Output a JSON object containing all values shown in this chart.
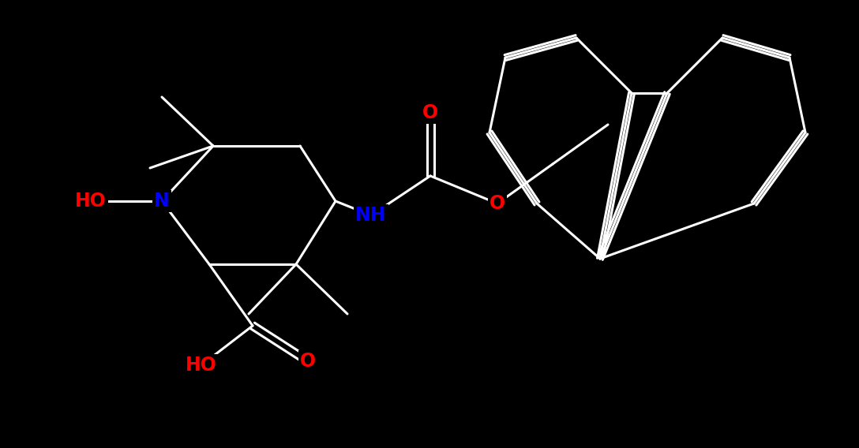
{
  "background_color": "#000000",
  "bond_color_white": "#ffffff",
  "figsize": [
    10.88,
    5.68
  ],
  "dpi": 100,
  "atoms": {
    "HO_N": {
      "label": "HO",
      "color": "#ff0000"
    },
    "N": {
      "label": "N",
      "color": "#0000ff"
    },
    "NH": {
      "label": "NH",
      "color": "#0000ff"
    },
    "O_carbamate": {
      "label": "O",
      "color": "#ff0000"
    },
    "O_ester": {
      "label": "O",
      "color": "#ff0000"
    },
    "O_acid": {
      "label": "O",
      "color": "#ff0000"
    },
    "HO_acid": {
      "label": "HO",
      "color": "#ff0000"
    }
  },
  "font_size": 17
}
